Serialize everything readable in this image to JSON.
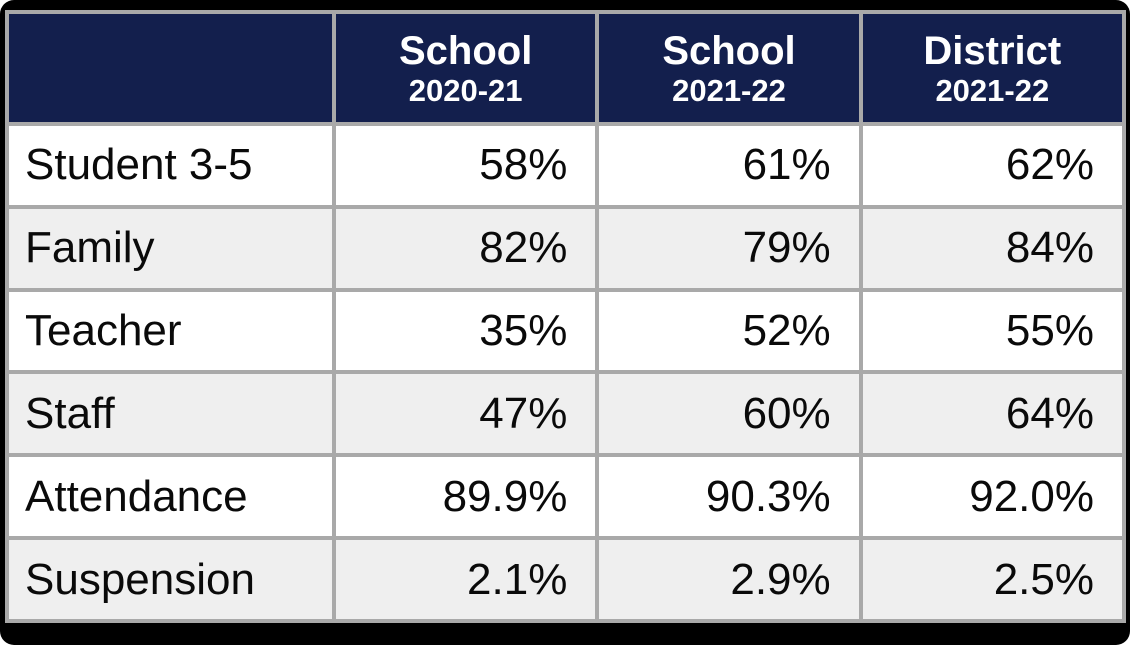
{
  "colors": {
    "header_bg": "#131F4D",
    "header_text": "#FFFFFF",
    "border": "#A9A9A9",
    "row_odd_bg": "#FFFFFF",
    "row_even_bg": "#EFEFEF",
    "outer_frame": "#000000",
    "body_text": "#000000"
  },
  "chart_data": {
    "type": "table",
    "columns": [
      {
        "label": "",
        "sublabel": ""
      },
      {
        "label": "School",
        "sublabel": "2020-21"
      },
      {
        "label": "School",
        "sublabel": "2021-22"
      },
      {
        "label": "District",
        "sublabel": "2021-22"
      }
    ],
    "rows": [
      {
        "label": "Student 3-5",
        "values": [
          "58%",
          "61%",
          "62%"
        ]
      },
      {
        "label": "Family",
        "values": [
          "82%",
          "79%",
          "84%"
        ]
      },
      {
        "label": "Teacher",
        "values": [
          "35%",
          "52%",
          "55%"
        ]
      },
      {
        "label": "Staff",
        "values": [
          "47%",
          "60%",
          "64%"
        ]
      },
      {
        "label": "Attendance",
        "values": [
          "89.9%",
          "90.3%",
          "92.0%"
        ]
      },
      {
        "label": "Suspension",
        "values": [
          "2.1%",
          "2.9%",
          "2.5%"
        ]
      }
    ]
  }
}
